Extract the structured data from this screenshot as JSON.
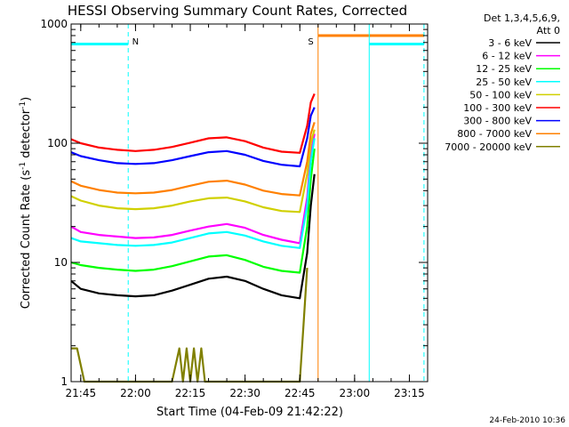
{
  "chart_data": {
    "type": "line",
    "title": "HESSI Observing Summary Count Rates, Corrected",
    "xlabel": "Start Time (04-Feb-09 21:42:22)",
    "ylabel": "Corrected Count Rate (s",
    "ylabel_sup": "-1",
    "ylabel_end": " detector",
    "ylabel_end_sup": "-1",
    "ylabel_close": ")",
    "ylim": [
      1,
      1000
    ],
    "yscale": "log",
    "xlim": [
      "21:42:22",
      "23:20:00"
    ],
    "x_ticks": [
      {
        "x": "21:45",
        "label": "21:45"
      },
      {
        "x": "22:00",
        "label": "22:00"
      },
      {
        "x": "22:15",
        "label": "22:15"
      },
      {
        "x": "22:30",
        "label": "22:30"
      },
      {
        "x": "22:45",
        "label": "22:45"
      },
      {
        "x": "23:00",
        "label": "23:00"
      },
      {
        "x": "23:15",
        "label": "23:15"
      }
    ],
    "y_ticks": [
      {
        "y": 1,
        "label": "1"
      },
      {
        "y": 10,
        "label": "10"
      },
      {
        "y": 100,
        "label": "100"
      },
      {
        "y": 1000,
        "label": "1000"
      }
    ],
    "legend_title_line1": "Det 1,3,4,5,6,9,",
    "legend_title_line2": "Att 0",
    "legend_placement": "right",
    "series": [
      {
        "name": "3 - 6 keV",
        "color": "#000000",
        "x": [
          "21:42:22",
          "21:45",
          "21:50",
          "21:55",
          "22:00",
          "22:05",
          "22:10",
          "22:15",
          "22:20",
          "22:25",
          "22:30",
          "22:35",
          "22:40",
          "22:45",
          "22:47",
          "22:48",
          "22:49"
        ],
        "y": [
          7,
          6,
          5.5,
          5.3,
          5.2,
          5.3,
          5.8,
          6.5,
          7.3,
          7.6,
          7,
          6,
          5.3,
          5.0,
          12,
          30,
          55
        ]
      },
      {
        "name": "6 - 12 keV",
        "color": "#ff00ff",
        "x": [
          "21:42:22",
          "21:45",
          "21:50",
          "21:55",
          "22:00",
          "22:05",
          "22:10",
          "22:15",
          "22:20",
          "22:25",
          "22:30",
          "22:35",
          "22:40",
          "22:45",
          "22:47",
          "22:48",
          "22:49"
        ],
        "y": [
          20,
          18,
          17,
          16.5,
          16,
          16.2,
          17,
          18.5,
          20,
          21,
          19.5,
          17,
          15.5,
          14.5,
          35,
          80,
          120
        ]
      },
      {
        "name": "12 - 25 keV",
        "color": "#00ff00",
        "x": [
          "21:42:22",
          "21:45",
          "21:50",
          "21:55",
          "22:00",
          "22:05",
          "22:10",
          "22:15",
          "22:20",
          "22:25",
          "22:30",
          "22:35",
          "22:40",
          "22:45",
          "22:47",
          "22:48",
          "22:49"
        ],
        "y": [
          10,
          9.5,
          9,
          8.7,
          8.5,
          8.7,
          9.3,
          10.2,
          11.2,
          11.5,
          10.5,
          9.2,
          8.5,
          8.2,
          20,
          50,
          90
        ]
      },
      {
        "name": "25 - 50 keV",
        "color": "#00ffff",
        "x": [
          "21:42:22",
          "21:45",
          "21:50",
          "21:55",
          "22:00",
          "22:05",
          "22:10",
          "22:15",
          "22:20",
          "22:25",
          "22:30",
          "22:35",
          "22:40",
          "22:45",
          "22:47",
          "22:48",
          "22:49"
        ],
        "y": [
          16,
          15,
          14.5,
          14,
          13.8,
          14,
          14.7,
          16,
          17.5,
          18,
          16.8,
          15,
          13.8,
          13.2,
          30,
          70,
          110
        ]
      },
      {
        "name": "50 - 100 keV",
        "color": "#d0d000",
        "x": [
          "21:42:22",
          "21:45",
          "21:50",
          "21:55",
          "22:00",
          "22:05",
          "22:10",
          "22:15",
          "22:20",
          "22:25",
          "22:30",
          "22:35",
          "22:40",
          "22:45",
          "22:47",
          "22:48",
          "22:49"
        ],
        "y": [
          36,
          33,
          30,
          28.5,
          28,
          28.5,
          30,
          32.5,
          34.5,
          35,
          32.5,
          29,
          27,
          26.5,
          55,
          100,
          130
        ]
      },
      {
        "name": "100 - 300 keV",
        "color": "#ff0000",
        "x": [
          "21:42:22",
          "21:45",
          "21:50",
          "21:55",
          "22:00",
          "22:05",
          "22:10",
          "22:15",
          "22:20",
          "22:25",
          "22:30",
          "22:35",
          "22:40",
          "22:45",
          "22:47",
          "22:48",
          "22:49"
        ],
        "y": [
          108,
          100,
          92,
          88,
          86,
          88,
          93,
          101,
          110,
          112,
          104,
          92,
          85,
          83,
          140,
          220,
          260
        ]
      },
      {
        "name": "300 - 800 keV",
        "color": "#0000ff",
        "x": [
          "21:42:22",
          "21:45",
          "21:50",
          "21:55",
          "22:00",
          "22:05",
          "22:10",
          "22:15",
          "22:20",
          "22:25",
          "22:30",
          "22:35",
          "22:40",
          "22:45",
          "22:47",
          "22:48",
          "22:49"
        ],
        "y": [
          84,
          78,
          72,
          68,
          67,
          68,
          72,
          78,
          84,
          86,
          80,
          71,
          66,
          64,
          110,
          170,
          200
        ]
      },
      {
        "name": "800 - 7000 keV",
        "color": "#ff8000",
        "x": [
          "21:42:22",
          "21:45",
          "21:50",
          "21:55",
          "22:00",
          "22:05",
          "22:10",
          "22:15",
          "22:20",
          "22:25",
          "22:30",
          "22:35",
          "22:40",
          "22:45",
          "22:47",
          "22:48",
          "22:49"
        ],
        "y": [
          48,
          44,
          40.5,
          38.5,
          38,
          38.5,
          40.5,
          44,
          47.5,
          48.5,
          45,
          40,
          37.5,
          36.5,
          70,
          120,
          150
        ]
      },
      {
        "name": "7000 - 20000 keV",
        "color": "#808000",
        "x": [
          "21:42:22",
          "21:44",
          "21:46",
          "22:10",
          "22:12",
          "22:13",
          "22:14",
          "22:15",
          "22:16",
          "22:17",
          "22:18",
          "22:19",
          "22:40",
          "22:45",
          "22:46",
          "22:47"
        ],
        "y": [
          1.9,
          1.9,
          1,
          1,
          1.9,
          1,
          1.9,
          1,
          1.9,
          1,
          1.9,
          1,
          1,
          1,
          3,
          9
        ]
      }
    ],
    "flags": [
      {
        "label": "N",
        "color": "#00ffff",
        "segments": [
          {
            "start": "21:42:22",
            "end": "21:58:00",
            "level": 680
          }
        ],
        "verticals": [
          "21:58:00"
        ],
        "label_at": "22:00"
      },
      {
        "label": "S",
        "color": "#ff8000",
        "segments": [
          {
            "start": "22:50:00",
            "end": "23:19:00",
            "level": 800
          }
        ],
        "verticals": [
          "22:50:00"
        ],
        "label_at": "22:48"
      },
      {
        "label": "",
        "color": "#00ffff",
        "segments": [
          {
            "start": "23:04:00",
            "end": "23:19:00",
            "level": 680
          }
        ],
        "verticals": [
          "23:04:00",
          "23:19:00"
        ],
        "label_at": ""
      }
    ]
  },
  "footer": {
    "timestamp": "24-Feb-2010 10:36"
  }
}
